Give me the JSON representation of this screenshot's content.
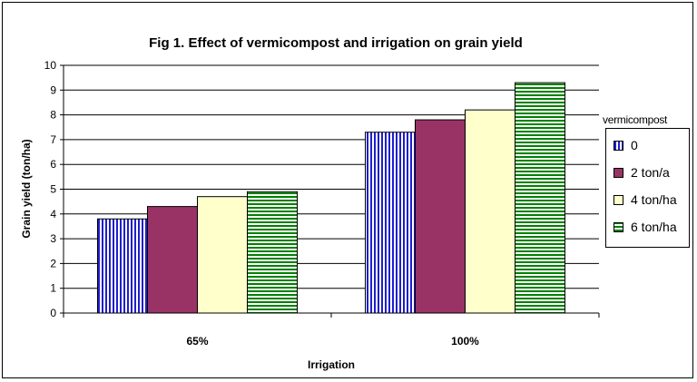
{
  "chart_data": {
    "type": "bar",
    "title": "Fig 1. Effect of vermicompost and irrigation on grain yield",
    "xlabel": "Irrigation",
    "ylabel": "Grain yield (ton/ha)",
    "categories": [
      "65%",
      "100%"
    ],
    "ylim": [
      0,
      10
    ],
    "yticks": [
      "0",
      "1",
      "2",
      "3",
      "4",
      "5",
      "6",
      "7",
      "8",
      "9",
      "10"
    ],
    "grid": true,
    "legend": {
      "title": "vermicompost",
      "placement": "right"
    },
    "series": [
      {
        "name": "0",
        "values": [
          3.8,
          7.3
        ],
        "color": "#1f1fcc",
        "pattern": "vertical-stripes"
      },
      {
        "name": "2 ton/a",
        "values": [
          4.3,
          7.8
        ],
        "color": "#993366",
        "pattern": "solid"
      },
      {
        "name": "4 ton/ha",
        "values": [
          4.7,
          8.2
        ],
        "color": "#ffffcc",
        "pattern": "solid"
      },
      {
        "name": "6 ton/ha",
        "values": [
          4.9,
          9.3
        ],
        "color": "#008000",
        "pattern": "horizontal-stripes"
      }
    ]
  }
}
